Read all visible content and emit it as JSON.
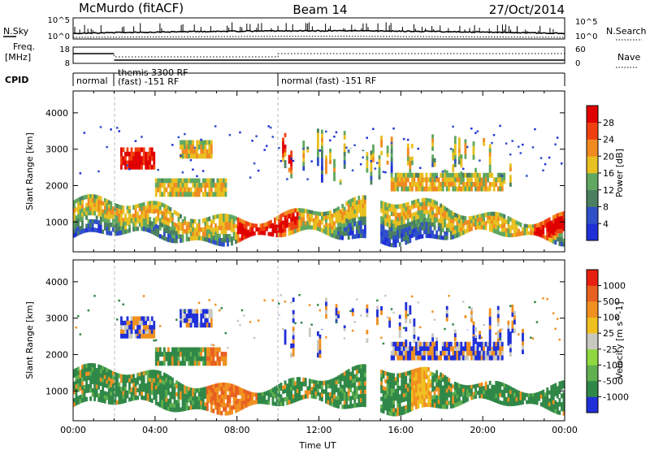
{
  "header": {
    "station": "McMurdo (fitACF)",
    "beam": "Beam 14",
    "date": "27/Oct/2014"
  },
  "side_labels": {
    "nsky": "N.Sky",
    "nsearch": "N.Search",
    "freq": "Freq.",
    "freq_unit": "[MHz]",
    "nave": "Nave",
    "cpid": "CPID"
  },
  "noise_panel": {
    "left_ticks": [
      "10^5",
      "10^0"
    ],
    "right_ticks": [
      "10^5",
      "10^0"
    ]
  },
  "freq_panel": {
    "left_ticks": [
      "18",
      "8"
    ],
    "right_ticks": [
      "60",
      "0"
    ]
  },
  "cpid_segments": [
    {
      "label": "normal",
      "start_hour": 0,
      "end_hour": 2
    },
    {
      "label": "themis 3300 RF",
      "label2": "(fast) -151 RF",
      "start_hour": 2,
      "end_hour": 10
    },
    {
      "label": "normal (fast) -151 RF",
      "start_hour": 10,
      "end_hour": 24
    }
  ],
  "chart_data": [
    {
      "type": "heatmap",
      "panel": "power",
      "ylabel": "Slant Range [km]",
      "xlabel": "",
      "xlim": [
        0,
        24
      ],
      "ylim": [
        180,
        4600
      ],
      "yticks": [
        "1000",
        "2000",
        "3000",
        "4000"
      ],
      "colorbar": {
        "label": "Power [dB]",
        "ticks": [
          "4",
          "8",
          "12",
          "16",
          "20",
          "24",
          "28"
        ],
        "colors": [
          "#2030d8",
          "#3050c8",
          "#4a8060",
          "#60a860",
          "#e8c020",
          "#f08a20",
          "#f04010",
          "#e00000"
        ]
      }
    },
    {
      "type": "heatmap",
      "panel": "velocity",
      "ylabel": "Slant Range [km]",
      "xlabel": "Time UT",
      "xlim": [
        0,
        24
      ],
      "ylim": [
        180,
        4600
      ],
      "yticks": [
        "1000",
        "2000",
        "3000",
        "4000"
      ],
      "xticks": [
        "00:00",
        "04:00",
        "08:00",
        "12:00",
        "16:00",
        "20:00",
        "00:00"
      ],
      "colorbar": {
        "label": "Velocity [m s^-1]",
        "ticks": [
          "1000",
          "500",
          "100",
          "25",
          "-25",
          "-100",
          "-500",
          "-1000"
        ],
        "colors": [
          "#2030d8",
          "#308848",
          "#60b050",
          "#90d840",
          "#c8c8c0",
          "#f0c020",
          "#f09020",
          "#e86020",
          "#e82010"
        ]
      }
    }
  ]
}
